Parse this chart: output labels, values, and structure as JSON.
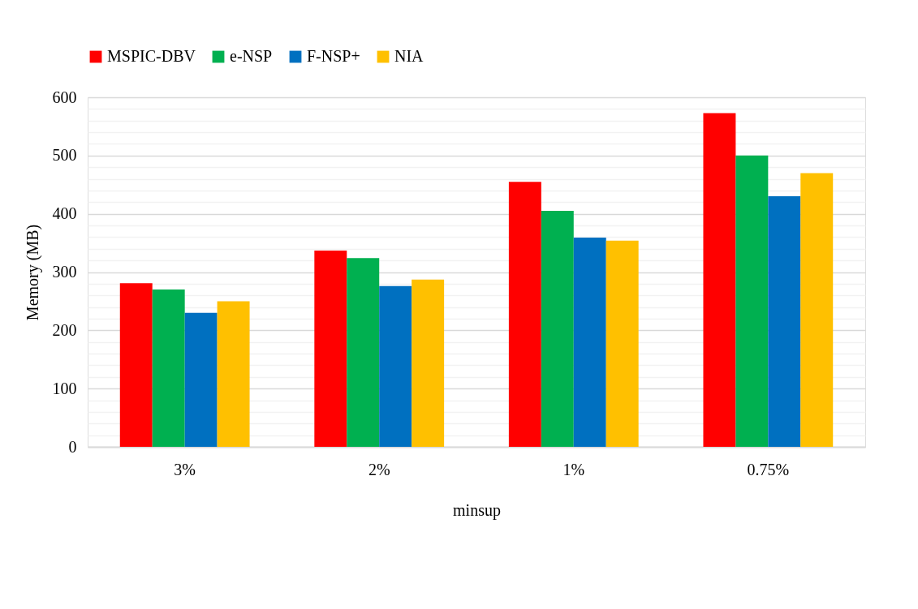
{
  "chart_data": {
    "type": "bar",
    "xlabel": "minsup",
    "ylabel": "Memory (MB)",
    "categories": [
      "3%",
      "2%",
      "1%",
      "0.75%"
    ],
    "series": [
      {
        "name": "MSPIC-DBV",
        "color": "#ff0000",
        "values": [
          281,
          337,
          455,
          573
        ]
      },
      {
        "name": "e-NSP",
        "color": "#00b050",
        "values": [
          270,
          324,
          405,
          500
        ]
      },
      {
        "name": "F-NSP+",
        "color": "#0070c0",
        "values": [
          230,
          276,
          359,
          430
        ]
      },
      {
        "name": "NIA",
        "color": "#ffc000",
        "values": [
          250,
          287,
          354,
          470
        ]
      }
    ],
    "ylim": [
      0,
      600
    ],
    "yticks": [
      0,
      {
        "value": 20,
        "label": null
      },
      {
        "value": 40,
        "label": null
      },
      {
        "value": 60,
        "label": null
      },
      {
        "value": 80,
        "label": null
      },
      100,
      {
        "value": 120,
        "label": null
      },
      {
        "value": 140,
        "label": null
      },
      {
        "value": 160,
        "label": null
      },
      {
        "value": 180,
        "label": null
      },
      200,
      {
        "value": 220,
        "label": null
      },
      {
        "value": 240,
        "label": null
      },
      {
        "value": 260,
        "label": null
      },
      {
        "value": 280,
        "label": null
      },
      300,
      {
        "value": 320,
        "label": null
      },
      {
        "value": 340,
        "label": null
      },
      {
        "value": 360,
        "label": null
      },
      {
        "value": 380,
        "label": null
      },
      400,
      {
        "value": 420,
        "label": null
      },
      {
        "value": 440,
        "label": null
      },
      {
        "value": 460,
        "label": null
      },
      {
        "value": 480,
        "label": null
      },
      500,
      {
        "value": 520,
        "label": null
      },
      {
        "value": 540,
        "label": null
      },
      {
        "value": 560,
        "label": null
      },
      {
        "value": 580,
        "label": null
      },
      600
    ],
    "grid": "y",
    "legend": "top"
  }
}
